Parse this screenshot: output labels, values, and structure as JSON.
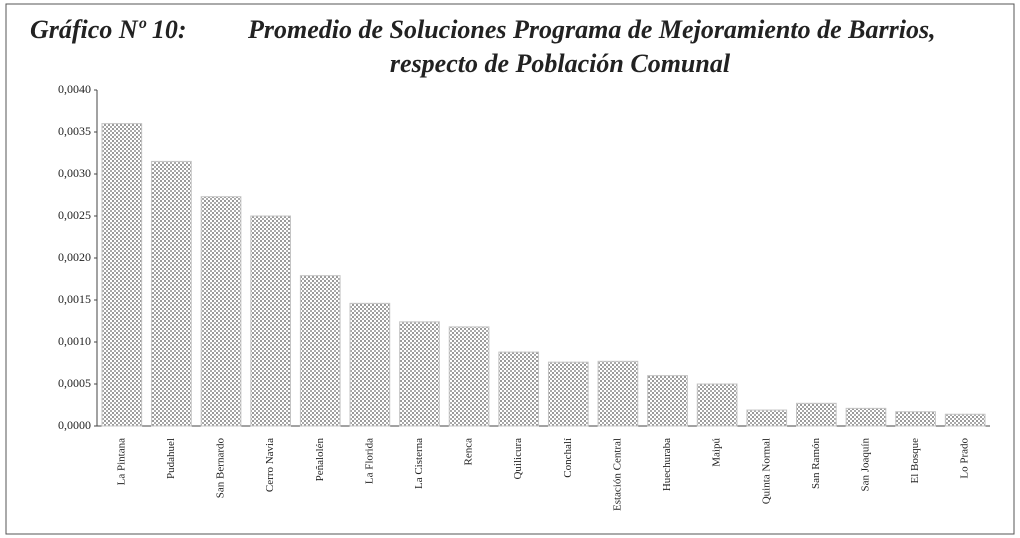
{
  "chart_data": {
    "type": "bar",
    "figure_label": "Gráfico Nº 10:",
    "title": [
      "Promedio de Soluciones Programa de Mejoramiento de Barrios,",
      "respecto de Población Comunal"
    ],
    "categories": [
      "La Pintana",
      "Pudahuel",
      "San Bernardo",
      "Cerro Navia",
      "Peñalolén",
      "La Florida",
      "La Cisterna",
      "Renca",
      "Quilicura",
      "Conchalí",
      "Estación Central",
      "Huechuraba",
      "Maipú",
      "Quinta Normal",
      "San Ramón",
      "San Joaquín",
      "El Bosque",
      "Lo Prado"
    ],
    "values": [
      0.0036,
      0.00315,
      0.00273,
      0.0025,
      0.00179,
      0.00146,
      0.00124,
      0.00118,
      0.00088,
      0.00076,
      0.00077,
      0.0006,
      0.0005,
      0.00019,
      0.00027,
      0.00021,
      0.00017,
      0.00014
    ],
    "color": "#c4c4c4",
    "ylim": [
      0,
      0.004
    ],
    "yticks": [
      {
        "value": 0,
        "label": "0,0000"
      },
      {
        "value": 0.0005,
        "label": "0,0005"
      },
      {
        "value": 0.001,
        "label": "0,0010"
      },
      {
        "value": 0.0015,
        "label": "0,0015"
      },
      {
        "value": 0.002,
        "label": "0,0020"
      },
      {
        "value": 0.0025,
        "label": "0,0025"
      },
      {
        "value": 0.003,
        "label": "0,0030"
      },
      {
        "value": 0.0035,
        "label": "0,0035"
      },
      {
        "value": 0.004,
        "label": "0,0040"
      }
    ],
    "grid": false
  }
}
